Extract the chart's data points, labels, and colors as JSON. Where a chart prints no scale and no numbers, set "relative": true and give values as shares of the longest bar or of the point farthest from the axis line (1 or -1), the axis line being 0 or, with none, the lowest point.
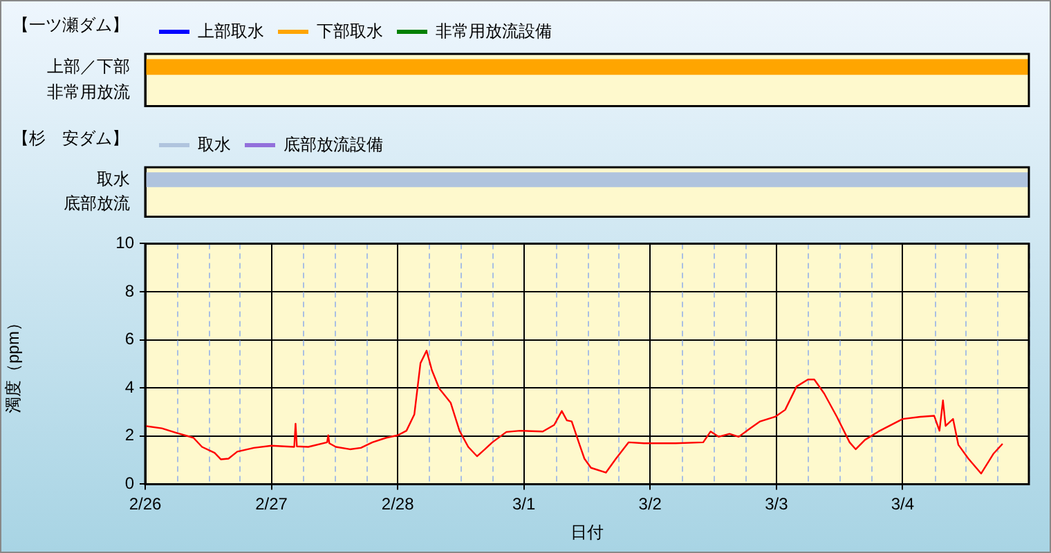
{
  "chart_data": [
    {
      "type": "bar",
      "orientation": "horizontal",
      "title": "【一ツ瀬ダム】",
      "categories": [
        "上部／下部",
        "非常用放流"
      ],
      "series": [
        {
          "name": "上部取水",
          "color": "#0000ff",
          "values": [
            null,
            null
          ]
        },
        {
          "name": "下部取水",
          "color": "#ffa500",
          "values": [
            1,
            null
          ]
        },
        {
          "name": "非常用放流設備",
          "color": "#008000",
          "values": [
            null,
            null
          ]
        }
      ],
      "relative": true,
      "legend": "top left"
    },
    {
      "type": "bar",
      "orientation": "horizontal",
      "title": "【杉　安ダム】",
      "categories": [
        "取水",
        "底部放流"
      ],
      "series": [
        {
          "name": "取水",
          "color": "#b0c4de",
          "values": [
            1,
            null
          ]
        },
        {
          "name": "底部放流設備",
          "color": "#9370db",
          "values": [
            null,
            null
          ]
        }
      ],
      "relative": true,
      "legend": "top left"
    },
    {
      "type": "line",
      "xlabel": "日付",
      "ylabel": "濁度（ppm）",
      "x": [
        "--02-26T00:00",
        "--02-26T03:10",
        "--02-26T06:00",
        "--02-26T09:10",
        "--02-26T10:48",
        "--02-26T13:12",
        "--02-26T14:24",
        "--02-26T15:50",
        "--02-26T17:30",
        "--02-26T20:40",
        "--02-27T00:00",
        "--02-27T04:20",
        "--02-27T04:35",
        "--02-27T04:50",
        "--02-27T07:00",
        "--02-27T10:35",
        "--02-27T10:48",
        "--02-27T11:00",
        "--02-27T12:15",
        "--02-27T14:55",
        "--02-27T17:00",
        "--02-27T19:12",
        "--02-27T21:50",
        "--02-28T00:00",
        "--02-28T01:40",
        "--02-28T03:10",
        "--02-28T04:20",
        "--02-28T05:30",
        "--02-28T06:30",
        "--02-28T07:55",
        "--02-28T08:40",
        "--02-28T10:05",
        "--02-28T11:45",
        "--02-28T13:25",
        "--02-28T15:05",
        "--02-28T16:35",
        "--02-28T18:00",
        "--02-28T20:40",
        "--02-28T23:15",
        "--03-01T03:35",
        "--03-01T05:45",
        "--03-01T07:12",
        "--03-01T08:10",
        "--03-01T09:05",
        "--03-01T10:35",
        "--03-01T11:30",
        "--03-01T12:45",
        "--03-01T15:35",
        "--03-01T17:30",
        "--03-01T19:55",
        "--03-01T22:50",
        "--03-02T04:50",
        "--03-02T10:05",
        "--03-02T11:30",
        "--03-02T13:00",
        "--03-02T15:05",
        "--03-02T16:50",
        "--03-02T19:00",
        "--03-02T20:55",
        "--03-02T23:45",
        "--03-03T01:40",
        "--03-03T03:50",
        "--03-03T06:00",
        "--03-03T07:12",
        "--03-03T09:05",
        "--03-03T11:30",
        "--03-03T13:55",
        "--03-03T15:05",
        "--03-03T16:50",
        "--03-03T19:25",
        "--03-04T00:00",
        "--03-04T03:20",
        "--03-04T06:00",
        "--03-04T07:00",
        "--03-04T07:40",
        "--03-04T08:10",
        "--03-04T09:35",
        "--03-04T10:35",
        "--03-04T12:30",
        "--03-04T14:55",
        "--03-04T17:15",
        "--03-04T19:00"
      ],
      "series": [
        {
          "color": "#ff0000",
          "values": [
            2.42,
            2.32,
            2.13,
            1.93,
            1.55,
            1.3,
            1.03,
            1.06,
            1.35,
            1.51,
            1.6,
            1.55,
            2.51,
            1.57,
            1.55,
            1.74,
            2.03,
            1.7,
            1.55,
            1.45,
            1.51,
            1.74,
            1.93,
            2.03,
            2.22,
            2.9,
            5.03,
            5.55,
            4.74,
            3.97,
            3.77,
            3.38,
            2.22,
            1.55,
            1.16,
            1.45,
            1.74,
            2.17,
            2.22,
            2.19,
            2.46,
            3.04,
            2.65,
            2.61,
            1.64,
            1.06,
            0.68,
            0.48,
            1.06,
            1.74,
            1.7,
            1.7,
            1.74,
            2.19,
            1.97,
            2.09,
            1.97,
            2.32,
            2.61,
            2.8,
            3.09,
            4.06,
            4.35,
            4.35,
            3.77,
            2.8,
            1.74,
            1.45,
            1.84,
            2.19,
            2.71,
            2.8,
            2.84,
            2.22,
            3.48,
            2.42,
            2.71,
            1.64,
            1.06,
            0.44,
            1.26,
            1.68
          ]
        }
      ],
      "xlim": [
        "--02-26",
        "--03-05"
      ],
      "xticks": [
        {
          "value": "--02-26",
          "label": "2/26"
        },
        {
          "value": "--02-26T06:00",
          "label": null
        },
        {
          "value": "--02-26T12:00",
          "label": null
        },
        {
          "value": "--02-26T18:00",
          "label": null
        },
        {
          "value": "--02-27",
          "label": "2/27"
        },
        {
          "value": "--02-27T06:00",
          "label": null
        },
        {
          "value": "--02-27T12:00",
          "label": null
        },
        {
          "value": "--02-27T18:00",
          "label": null
        },
        {
          "value": "--02-28",
          "label": "2/28"
        },
        {
          "value": "--02-28T06:00",
          "label": null
        },
        {
          "value": "--02-28T12:00",
          "label": null
        },
        {
          "value": "--02-28T18:00",
          "label": null
        },
        {
          "value": "--03-01",
          "label": "3/1"
        },
        {
          "value": "--03-01T06:00",
          "label": null
        },
        {
          "value": "--03-01T12:00",
          "label": null
        },
        {
          "value": "--03-01T18:00",
          "label": null
        },
        {
          "value": "--03-02",
          "label": "3/2"
        },
        {
          "value": "--03-02T06:00",
          "label": null
        },
        {
          "value": "--03-02T12:00",
          "label": null
        },
        {
          "value": "--03-02T18:00",
          "label": null
        },
        {
          "value": "--03-03",
          "label": "3/3"
        },
        {
          "value": "--03-03T06:00",
          "label": null
        },
        {
          "value": "--03-03T12:00",
          "label": null
        },
        {
          "value": "--03-03T18:00",
          "label": null
        },
        {
          "value": "--03-04",
          "label": "3/4"
        },
        {
          "value": "--03-04T06:00",
          "label": null
        },
        {
          "value": "--03-04T12:00",
          "label": null
        },
        {
          "value": "--03-04T18:00",
          "label": null
        },
        {
          "value": "--03-05",
          "label": null
        }
      ],
      "ylim": [
        0,
        10
      ],
      "yticks": [
        0,
        2,
        4,
        6,
        8,
        10
      ],
      "grid": true,
      "marker": "none",
      "line_style": "solid"
    }
  ]
}
